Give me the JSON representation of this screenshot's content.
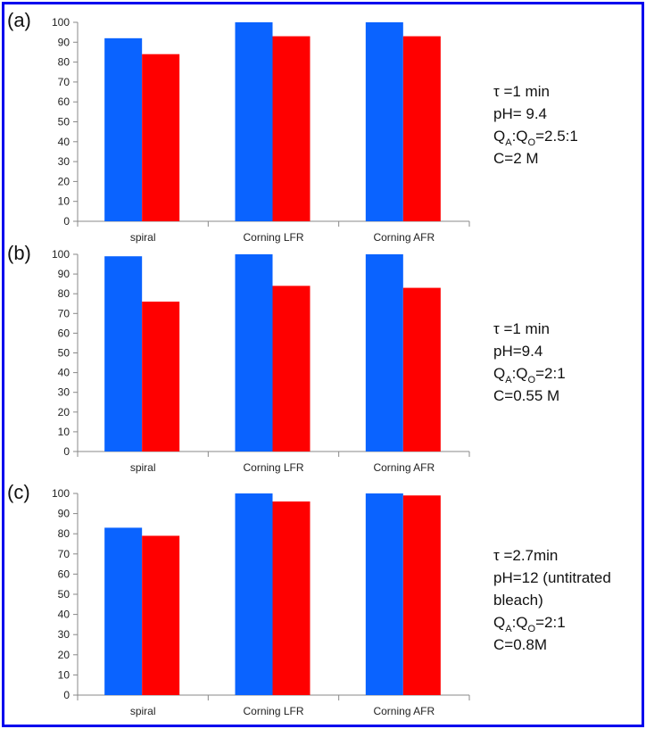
{
  "colors": {
    "series_1": "#0a63ff",
    "series_2": "#ff0000",
    "frame": "#0000ee"
  },
  "chart_data": [
    {
      "type": "bar",
      "panel_label": "(a)",
      "categories": [
        "spiral",
        "Corning LFR",
        "Corning AFR"
      ],
      "series": [
        {
          "values": [
            92,
            100,
            100
          ]
        },
        {
          "values": [
            84,
            93,
            93
          ]
        }
      ],
      "ylim": [
        0,
        100
      ],
      "yticks": [
        "0",
        "10",
        "20",
        "30",
        "40",
        "50",
        "60",
        "70",
        "80",
        "90",
        "100"
      ],
      "grid": false,
      "conditions": [
        {
          "main": "τ =1 min"
        },
        {
          "main": "pH= 9.4"
        },
        {
          "main": "Q",
          "sub1": "A",
          "mid": ":Q",
          "sub2": "O",
          "rest": "=2.5:1"
        },
        {
          "main": "C=2 M"
        }
      ]
    },
    {
      "type": "bar",
      "panel_label": "(b)",
      "categories": [
        "spiral",
        "Corning LFR",
        "Corning AFR"
      ],
      "series": [
        {
          "values": [
            99,
            100,
            100
          ]
        },
        {
          "values": [
            76,
            84,
            83
          ]
        }
      ],
      "ylim": [
        0,
        100
      ],
      "yticks": [
        "0",
        "10",
        "20",
        "30",
        "40",
        "50",
        "60",
        "70",
        "80",
        "90",
        "100"
      ],
      "grid": false,
      "conditions": [
        {
          "main": "τ =1 min"
        },
        {
          "main": "pH=9.4"
        },
        {
          "main": "Q",
          "sub1": "A",
          "mid": ":Q",
          "sub2": "O",
          "rest": "=2:1"
        },
        {
          "main": "C=0.55 M"
        }
      ]
    },
    {
      "type": "bar",
      "panel_label": "(c)",
      "categories": [
        "spiral",
        "Corning LFR",
        "Corning AFR"
      ],
      "series": [
        {
          "values": [
            83,
            100,
            100
          ]
        },
        {
          "values": [
            79,
            96,
            99
          ]
        }
      ],
      "ylim": [
        0,
        100
      ],
      "yticks": [
        "0",
        "10",
        "20",
        "30",
        "40",
        "50",
        "60",
        "70",
        "80",
        "90",
        "100"
      ],
      "grid": false,
      "conditions": [
        {
          "main": "τ =2.7min"
        },
        {
          "main": "pH=12 (untitrated"
        },
        {
          "main": "bleach)"
        },
        {
          "main": "Q",
          "sub1": "A",
          "mid": ":Q",
          "sub2": "O",
          "rest": "=2:1"
        },
        {
          "main": "C=0.8M"
        }
      ]
    }
  ]
}
